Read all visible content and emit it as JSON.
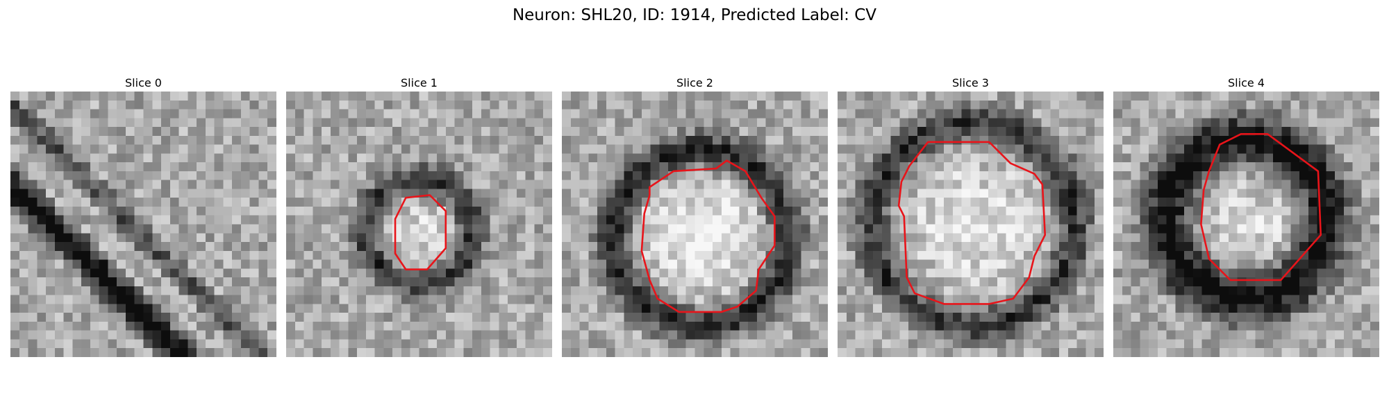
{
  "figure": {
    "title": "Neuron: SHL20, ID: 1914, Predicted Label: CV",
    "contour_color": "#e8141a"
  },
  "panels": [
    {
      "title": "Slice 0",
      "has_contour": false,
      "contour": []
    },
    {
      "title": "Slice 1",
      "has_contour": true,
      "contour": [
        [
          0.45,
          0.4
        ],
        [
          0.54,
          0.39
        ],
        [
          0.6,
          0.45
        ],
        [
          0.6,
          0.59
        ],
        [
          0.53,
          0.67
        ],
        [
          0.45,
          0.67
        ],
        [
          0.41,
          0.61
        ],
        [
          0.41,
          0.48
        ]
      ]
    },
    {
      "title": "Slice 2",
      "has_contour": true,
      "contour": [
        [
          0.42,
          0.3
        ],
        [
          0.58,
          0.29
        ],
        [
          0.62,
          0.26
        ],
        [
          0.69,
          0.3
        ],
        [
          0.75,
          0.4
        ],
        [
          0.8,
          0.47
        ],
        [
          0.8,
          0.58
        ],
        [
          0.74,
          0.67
        ],
        [
          0.73,
          0.75
        ],
        [
          0.66,
          0.81
        ],
        [
          0.6,
          0.83
        ],
        [
          0.44,
          0.83
        ],
        [
          0.36,
          0.78
        ],
        [
          0.33,
          0.71
        ],
        [
          0.3,
          0.6
        ],
        [
          0.31,
          0.46
        ],
        [
          0.33,
          0.39
        ],
        [
          0.33,
          0.36
        ]
      ]
    },
    {
      "title": "Slice 3",
      "has_contour": true,
      "contour": [
        [
          0.34,
          0.19
        ],
        [
          0.57,
          0.19
        ],
        [
          0.65,
          0.27
        ],
        [
          0.74,
          0.31
        ],
        [
          0.77,
          0.35
        ],
        [
          0.78,
          0.54
        ],
        [
          0.74,
          0.62
        ],
        [
          0.72,
          0.7
        ],
        [
          0.66,
          0.78
        ],
        [
          0.57,
          0.8
        ],
        [
          0.4,
          0.8
        ],
        [
          0.29,
          0.76
        ],
        [
          0.26,
          0.7
        ],
        [
          0.25,
          0.47
        ],
        [
          0.23,
          0.43
        ],
        [
          0.24,
          0.34
        ],
        [
          0.27,
          0.28
        ]
      ]
    },
    {
      "title": "Slice 4",
      "has_contour": true,
      "contour": [
        [
          0.48,
          0.16
        ],
        [
          0.58,
          0.16
        ],
        [
          0.77,
          0.3
        ],
        [
          0.78,
          0.54
        ],
        [
          0.63,
          0.71
        ],
        [
          0.44,
          0.71
        ],
        [
          0.36,
          0.63
        ],
        [
          0.33,
          0.5
        ],
        [
          0.34,
          0.37
        ],
        [
          0.36,
          0.3
        ],
        [
          0.38,
          0.25
        ],
        [
          0.4,
          0.2
        ]
      ]
    }
  ]
}
